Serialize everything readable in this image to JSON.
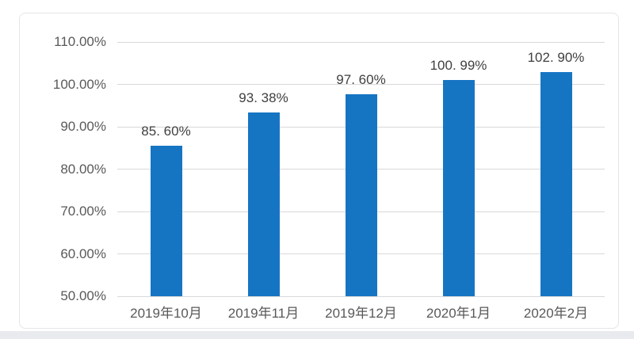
{
  "page": {
    "background_color": "#ffffff",
    "footer_strip_color": "#e8eaee",
    "card_border_color": "#e4e5e7"
  },
  "chart_data": {
    "type": "bar",
    "categories": [
      "2019年10月",
      "2019年11月",
      "2019年12月",
      "2020年1月",
      "2020年2月"
    ],
    "values": [
      85.6,
      93.38,
      97.6,
      100.99,
      102.9
    ],
    "data_labels": [
      "85. 60%",
      "93. 38%",
      "97. 60%",
      "100. 99%",
      "102. 90%"
    ],
    "title": "",
    "xlabel": "",
    "ylabel": "",
    "ylim": [
      50,
      110
    ],
    "ytick_step": 10,
    "ytick_labels": [
      "110.00%",
      "100.00%",
      "90.00%",
      "80.00%",
      "70.00%",
      "60.00%",
      "50.00%"
    ],
    "grid": true,
    "legend": false,
    "bar_color": "#1675c3",
    "gridline_color": "#d9d9d9",
    "tick_label_color": "#595959",
    "value_label_color": "#404040"
  }
}
